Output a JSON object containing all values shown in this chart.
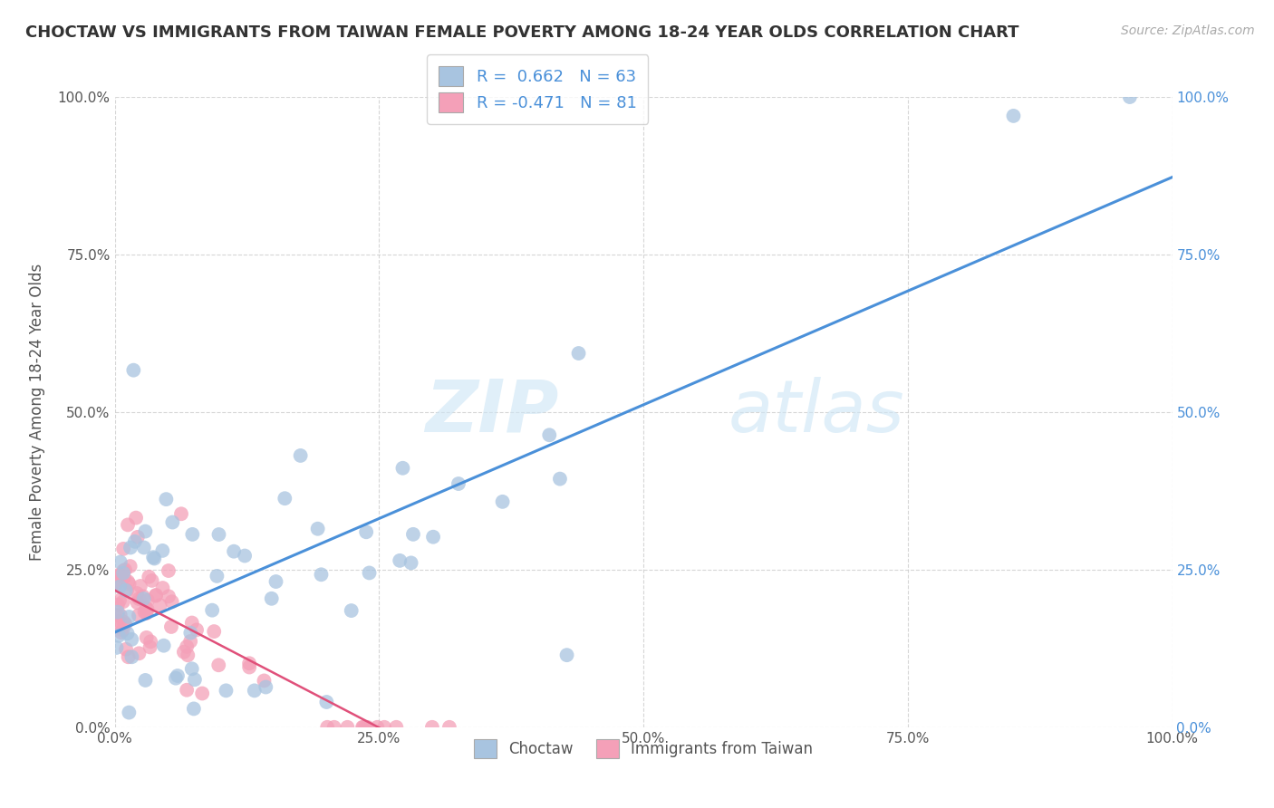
{
  "title": "CHOCTAW VS IMMIGRANTS FROM TAIWAN FEMALE POVERTY AMONG 18-24 YEAR OLDS CORRELATION CHART",
  "source": "Source: ZipAtlas.com",
  "ylabel": "Female Poverty Among 18-24 Year Olds",
  "watermark_zip": "ZIP",
  "watermark_atlas": "atlas",
  "choctaw_R": 0.662,
  "choctaw_N": 63,
  "taiwan_R": -0.471,
  "taiwan_N": 81,
  "choctaw_color": "#a8c4e0",
  "taiwan_color": "#f4a0b8",
  "choctaw_line_color": "#4a90d9",
  "taiwan_line_color": "#e0507a",
  "background_color": "#ffffff",
  "grid_color": "#cccccc",
  "legend_label_choctaw": "Choctaw",
  "legend_label_taiwan": "Immigrants from Taiwan",
  "xlim": [
    0,
    1.0
  ],
  "ylim": [
    0,
    1.0
  ],
  "xtick_labels": [
    "0.0%",
    "25.0%",
    "50.0%",
    "75.0%",
    "100.0%"
  ],
  "ytick_labels": [
    "0.0%",
    "25.0%",
    "50.0%",
    "75.0%",
    "100.0%"
  ],
  "right_ytick_labels": [
    "0.0%",
    "25.0%",
    "50.0%",
    "75.0%",
    "100.0%"
  ],
  "title_fontsize": 13,
  "axis_label_fontsize": 12,
  "tick_fontsize": 11,
  "legend_fontsize": 13,
  "stat_color": "#4a90d9"
}
